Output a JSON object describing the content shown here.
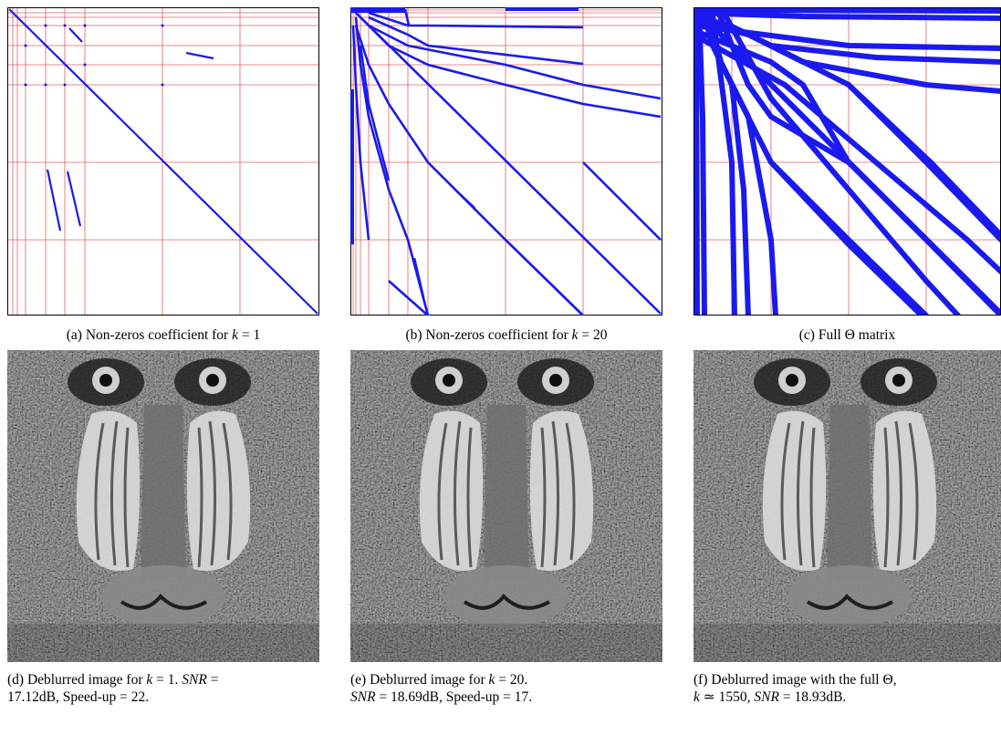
{
  "figures": {
    "a": {
      "label": "(a)",
      "caption_parts": [
        "Non-zeros coefficient for ",
        "k",
        " = 1"
      ]
    },
    "b": {
      "label": "(b)",
      "caption_parts": [
        "Non-zeros coefficient for ",
        "k",
        " = 20"
      ]
    },
    "c": {
      "label": "(c)",
      "caption_parts": [
        "Full ",
        "Θ",
        " matrix"
      ]
    },
    "d": {
      "label": "(d)",
      "line1": [
        "Deblurred image for ",
        "k",
        " = 1. ",
        "SNR",
        " ="
      ],
      "line2": "17.12dB, Speed-up = 22."
    },
    "e": {
      "label": "(e)",
      "line1": [
        "Deblurred image for ",
        "k",
        " = 20."
      ],
      "line2": [
        "SNR",
        " = 18.69dB, Speed-up = 17."
      ]
    },
    "f": {
      "label": "(f)",
      "line1": [
        "Deblurred image with the full ",
        "Θ",
        ","
      ],
      "line2": [
        "k",
        " ≃ 1550, ",
        "SNR",
        " = 18.93dB."
      ]
    }
  },
  "colors": {
    "grid": "#e06060",
    "nonzero": "#1a1aee",
    "frame": "#000000"
  }
}
